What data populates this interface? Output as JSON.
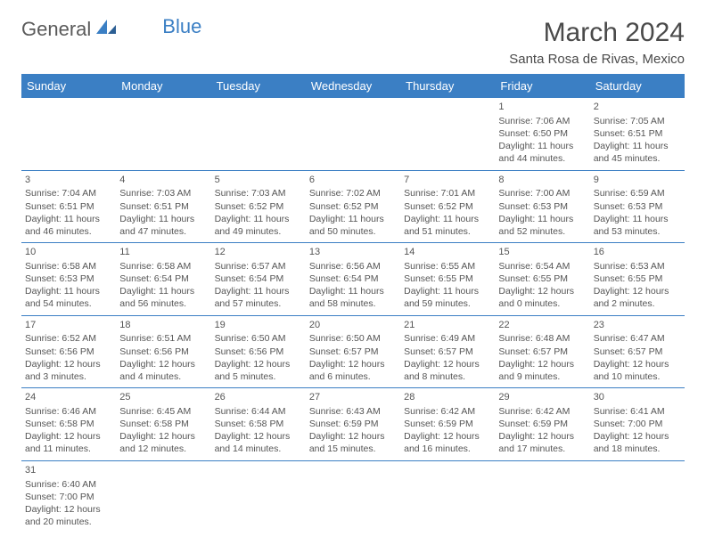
{
  "logo": {
    "general": "General",
    "blue": "Blue"
  },
  "title": "March 2024",
  "subtitle": "Santa Rosa de Rivas, Mexico",
  "colors": {
    "header_bg": "#3b7fc4",
    "header_text": "#ffffff",
    "text": "#555555",
    "border": "#3b7fc4",
    "background": "#ffffff"
  },
  "days_of_week": [
    "Sunday",
    "Monday",
    "Tuesday",
    "Wednesday",
    "Thursday",
    "Friday",
    "Saturday"
  ],
  "weeks": [
    [
      null,
      null,
      null,
      null,
      null,
      {
        "n": "1",
        "sunrise": "7:06 AM",
        "sunset": "6:50 PM",
        "daylight": "11 hours and 44 minutes."
      },
      {
        "n": "2",
        "sunrise": "7:05 AM",
        "sunset": "6:51 PM",
        "daylight": "11 hours and 45 minutes."
      }
    ],
    [
      {
        "n": "3",
        "sunrise": "7:04 AM",
        "sunset": "6:51 PM",
        "daylight": "11 hours and 46 minutes."
      },
      {
        "n": "4",
        "sunrise": "7:03 AM",
        "sunset": "6:51 PM",
        "daylight": "11 hours and 47 minutes."
      },
      {
        "n": "5",
        "sunrise": "7:03 AM",
        "sunset": "6:52 PM",
        "daylight": "11 hours and 49 minutes."
      },
      {
        "n": "6",
        "sunrise": "7:02 AM",
        "sunset": "6:52 PM",
        "daylight": "11 hours and 50 minutes."
      },
      {
        "n": "7",
        "sunrise": "7:01 AM",
        "sunset": "6:52 PM",
        "daylight": "11 hours and 51 minutes."
      },
      {
        "n": "8",
        "sunrise": "7:00 AM",
        "sunset": "6:53 PM",
        "daylight": "11 hours and 52 minutes."
      },
      {
        "n": "9",
        "sunrise": "6:59 AM",
        "sunset": "6:53 PM",
        "daylight": "11 hours and 53 minutes."
      }
    ],
    [
      {
        "n": "10",
        "sunrise": "6:58 AM",
        "sunset": "6:53 PM",
        "daylight": "11 hours and 54 minutes."
      },
      {
        "n": "11",
        "sunrise": "6:58 AM",
        "sunset": "6:54 PM",
        "daylight": "11 hours and 56 minutes."
      },
      {
        "n": "12",
        "sunrise": "6:57 AM",
        "sunset": "6:54 PM",
        "daylight": "11 hours and 57 minutes."
      },
      {
        "n": "13",
        "sunrise": "6:56 AM",
        "sunset": "6:54 PM",
        "daylight": "11 hours and 58 minutes."
      },
      {
        "n": "14",
        "sunrise": "6:55 AM",
        "sunset": "6:55 PM",
        "daylight": "11 hours and 59 minutes."
      },
      {
        "n": "15",
        "sunrise": "6:54 AM",
        "sunset": "6:55 PM",
        "daylight": "12 hours and 0 minutes."
      },
      {
        "n": "16",
        "sunrise": "6:53 AM",
        "sunset": "6:55 PM",
        "daylight": "12 hours and 2 minutes."
      }
    ],
    [
      {
        "n": "17",
        "sunrise": "6:52 AM",
        "sunset": "6:56 PM",
        "daylight": "12 hours and 3 minutes."
      },
      {
        "n": "18",
        "sunrise": "6:51 AM",
        "sunset": "6:56 PM",
        "daylight": "12 hours and 4 minutes."
      },
      {
        "n": "19",
        "sunrise": "6:50 AM",
        "sunset": "6:56 PM",
        "daylight": "12 hours and 5 minutes."
      },
      {
        "n": "20",
        "sunrise": "6:50 AM",
        "sunset": "6:57 PM",
        "daylight": "12 hours and 6 minutes."
      },
      {
        "n": "21",
        "sunrise": "6:49 AM",
        "sunset": "6:57 PM",
        "daylight": "12 hours and 8 minutes."
      },
      {
        "n": "22",
        "sunrise": "6:48 AM",
        "sunset": "6:57 PM",
        "daylight": "12 hours and 9 minutes."
      },
      {
        "n": "23",
        "sunrise": "6:47 AM",
        "sunset": "6:57 PM",
        "daylight": "12 hours and 10 minutes."
      }
    ],
    [
      {
        "n": "24",
        "sunrise": "6:46 AM",
        "sunset": "6:58 PM",
        "daylight": "12 hours and 11 minutes."
      },
      {
        "n": "25",
        "sunrise": "6:45 AM",
        "sunset": "6:58 PM",
        "daylight": "12 hours and 12 minutes."
      },
      {
        "n": "26",
        "sunrise": "6:44 AM",
        "sunset": "6:58 PM",
        "daylight": "12 hours and 14 minutes."
      },
      {
        "n": "27",
        "sunrise": "6:43 AM",
        "sunset": "6:59 PM",
        "daylight": "12 hours and 15 minutes."
      },
      {
        "n": "28",
        "sunrise": "6:42 AM",
        "sunset": "6:59 PM",
        "daylight": "12 hours and 16 minutes."
      },
      {
        "n": "29",
        "sunrise": "6:42 AM",
        "sunset": "6:59 PM",
        "daylight": "12 hours and 17 minutes."
      },
      {
        "n": "30",
        "sunrise": "6:41 AM",
        "sunset": "7:00 PM",
        "daylight": "12 hours and 18 minutes."
      }
    ],
    [
      {
        "n": "31",
        "sunrise": "6:40 AM",
        "sunset": "7:00 PM",
        "daylight": "12 hours and 20 minutes."
      },
      null,
      null,
      null,
      null,
      null,
      null
    ]
  ],
  "labels": {
    "sunrise": "Sunrise:",
    "sunset": "Sunset:",
    "daylight": "Daylight:"
  }
}
